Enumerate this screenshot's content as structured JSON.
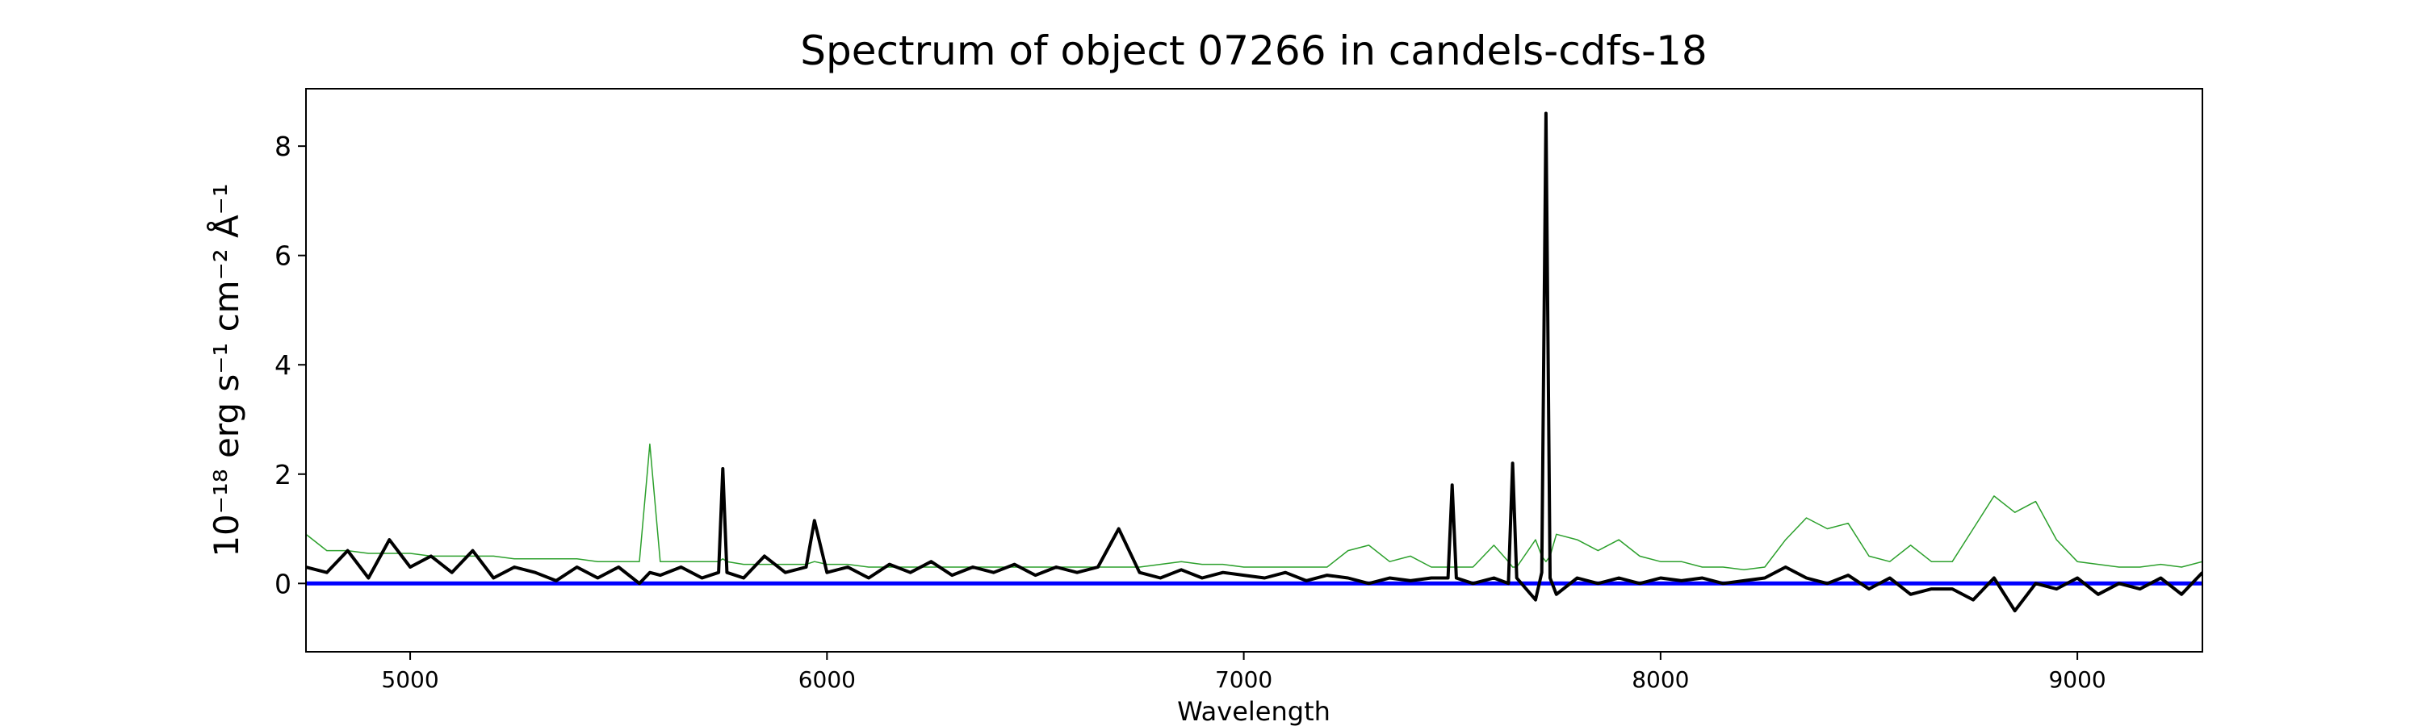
{
  "chart_data": {
    "type": "line",
    "title": "Spectrum of object 07266 in candels-cdfs-18",
    "xlabel": "Wavelength",
    "ylabel": "10⁻¹⁸ erg s⁻¹ cm⁻² Å⁻¹",
    "x": [
      4750,
      4800,
      4850,
      4900,
      4950,
      5000,
      5050,
      5100,
      5150,
      5200,
      5250,
      5300,
      5350,
      5400,
      5450,
      5500,
      5550,
      5575,
      5600,
      5650,
      5700,
      5740,
      5750,
      5760,
      5800,
      5850,
      5900,
      5950,
      5970,
      6000,
      6050,
      6100,
      6150,
      6200,
      6250,
      6300,
      6350,
      6400,
      6450,
      6500,
      6550,
      6600,
      6650,
      6700,
      6750,
      6800,
      6850,
      6900,
      6950,
      7000,
      7050,
      7100,
      7150,
      7200,
      7250,
      7300,
      7350,
      7400,
      7450,
      7490,
      7500,
      7510,
      7550,
      7600,
      7635,
      7645,
      7655,
      7700,
      7715,
      7725,
      7735,
      7750,
      7800,
      7850,
      7900,
      7950,
      8000,
      8050,
      8100,
      8150,
      8200,
      8250,
      8300,
      8350,
      8400,
      8450,
      8500,
      8550,
      8600,
      8650,
      8700,
      8750,
      8800,
      8850,
      8900,
      8950,
      9000,
      9050,
      9100,
      9150,
      9200,
      9250,
      9300
    ],
    "series": [
      {
        "color": "#2ca02c",
        "width": 1.5,
        "values": [
          0.9,
          0.6,
          0.6,
          0.55,
          0.55,
          0.55,
          0.5,
          0.5,
          0.5,
          0.5,
          0.45,
          0.45,
          0.45,
          0.45,
          0.4,
          0.4,
          0.4,
          2.55,
          0.4,
          0.4,
          0.4,
          0.4,
          0.45,
          0.4,
          0.35,
          0.35,
          0.35,
          0.35,
          0.4,
          0.35,
          0.35,
          0.3,
          0.3,
          0.3,
          0.3,
          0.3,
          0.3,
          0.3,
          0.3,
          0.3,
          0.3,
          0.3,
          0.3,
          0.3,
          0.3,
          0.35,
          0.4,
          0.35,
          0.35,
          0.3,
          0.3,
          0.3,
          0.3,
          0.3,
          0.6,
          0.7,
          0.4,
          0.5,
          0.3,
          0.3,
          0.3,
          0.3,
          0.3,
          0.7,
          0.4,
          0.3,
          0.3,
          0.8,
          0.5,
          0.4,
          0.5,
          0.9,
          0.8,
          0.6,
          0.8,
          0.5,
          0.4,
          0.4,
          0.3,
          0.3,
          0.25,
          0.3,
          0.8,
          1.2,
          1.0,
          1.1,
          0.5,
          0.4,
          0.7,
          0.4,
          0.4,
          1.0,
          1.6,
          1.3,
          1.5,
          0.8,
          0.4,
          0.35,
          0.3,
          0.3,
          0.35,
          0.3,
          0.4
        ]
      },
      {
        "color": "#0000ff",
        "width": 5,
        "x": [
          4750,
          9300
        ],
        "values": [
          0,
          0
        ]
      },
      {
        "color": "#000000",
        "width": 4,
        "values": [
          0.3,
          0.2,
          0.6,
          0.1,
          0.8,
          0.3,
          0.5,
          0.2,
          0.6,
          0.1,
          0.3,
          0.2,
          0.05,
          0.3,
          0.1,
          0.3,
          0.0,
          0.2,
          0.15,
          0.3,
          0.1,
          0.2,
          2.1,
          0.2,
          0.1,
          0.5,
          0.2,
          0.3,
          1.15,
          0.2,
          0.3,
          0.1,
          0.35,
          0.2,
          0.4,
          0.15,
          0.3,
          0.2,
          0.35,
          0.15,
          0.3,
          0.2,
          0.3,
          1.0,
          0.2,
          0.1,
          0.25,
          0.1,
          0.2,
          0.15,
          0.1,
          0.2,
          0.05,
          0.15,
          0.1,
          0.0,
          0.1,
          0.05,
          0.1,
          0.1,
          1.8,
          0.1,
          0.0,
          0.1,
          0.0,
          2.2,
          0.1,
          -0.3,
          0.2,
          8.6,
          0.1,
          -0.2,
          0.1,
          0.0,
          0.1,
          0.0,
          0.1,
          0.05,
          0.1,
          0.0,
          0.05,
          0.1,
          0.3,
          0.1,
          0.0,
          0.15,
          -0.1,
          0.1,
          -0.2,
          -0.1,
          -0.1,
          -0.3,
          0.1,
          -0.5,
          0.0,
          -0.1,
          0.1,
          -0.2,
          0.0,
          -0.1,
          0.1,
          -0.2,
          0.2
        ]
      }
    ],
    "xlim": [
      4750,
      9300
    ],
    "xticks": [
      5000,
      6000,
      7000,
      8000,
      9000
    ],
    "ylim": [
      -1.25,
      9.05
    ],
    "yticks": [
      0,
      2,
      4,
      6,
      8
    ]
  }
}
